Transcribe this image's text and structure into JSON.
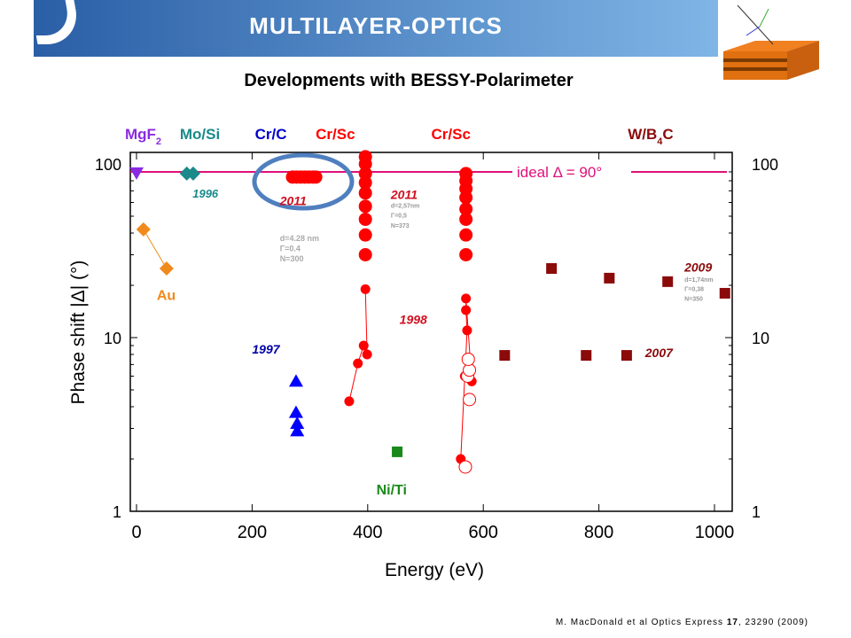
{
  "slide": {
    "title": "MULTILAYER-OPTICS",
    "subtitle": "Developments with BESSY-Polarimeter",
    "citation_pre": "M. MacDonald et al Optics Express ",
    "citation_vol": "17",
    "citation_post": ", 23290 (2009)"
  },
  "chart_data": {
    "type": "scatter",
    "xlabel": "Energy (eV)",
    "ylabel": "Phase shift  |Δ| (°)",
    "xlim": [
      -10,
      1030
    ],
    "ylim": [
      1,
      116
    ],
    "yscale": "log",
    "xticks": [
      0,
      200,
      400,
      600,
      800,
      1000
    ],
    "yticks": [
      1,
      10,
      100
    ],
    "ideal_line": {
      "value": 90,
      "label": "ideal Δ = 90°",
      "color": "#e0107a"
    },
    "series": [
      {
        "name": "MgF2",
        "marker": "triangle-down",
        "color": "#8a2be2",
        "points": [
          [
            0,
            89
          ]
        ]
      },
      {
        "name": "Mo/Si 1996",
        "marker": "diamond",
        "color": "#1a8a8a",
        "points": [
          [
            87,
            88
          ],
          [
            98,
            88
          ]
        ]
      },
      {
        "name": "Au",
        "marker": "diamond",
        "color": "#f08a1c",
        "line": true,
        "points": [
          [
            12,
            42
          ],
          [
            52,
            25
          ]
        ]
      },
      {
        "name": "Cr/C 2011",
        "marker": "circle",
        "color": "#ff0000",
        "points": [
          [
            270,
            84
          ],
          [
            277,
            84
          ],
          [
            284,
            84
          ],
          [
            291,
            84
          ],
          [
            298,
            84
          ],
          [
            305,
            84
          ],
          [
            310,
            84
          ]
        ]
      },
      {
        "name": "Cr/C 1997",
        "marker": "triangle-up",
        "color": "#0000ff",
        "points": [
          [
            276,
            5.6
          ],
          [
            276,
            3.7
          ],
          [
            278,
            3.2
          ],
          [
            278,
            2.9
          ]
        ]
      },
      {
        "name": "Cr/Sc 1998 (400 eV)",
        "marker": "circle",
        "color": "#ff0000",
        "line": true,
        "small": true,
        "points": [
          [
            368,
            4.3
          ],
          [
            383,
            7.1
          ],
          [
            393,
            9
          ],
          [
            399,
            8
          ],
          [
            396,
            19
          ]
        ]
      },
      {
        "name": "Cr/Sc 2011 (400 eV)",
        "marker": "circle",
        "color": "#ff0000",
        "points": [
          [
            396,
            110
          ],
          [
            396,
            100
          ],
          [
            396,
            88
          ],
          [
            396,
            78
          ],
          [
            396,
            68
          ],
          [
            396,
            57
          ],
          [
            396,
            48
          ],
          [
            396,
            39
          ],
          [
            396,
            30
          ]
        ]
      },
      {
        "name": "Cr/Sc 2011 (570 eV)",
        "marker": "circle",
        "color": "#ff0000",
        "points": [
          [
            570,
            88
          ],
          [
            570,
            80
          ],
          [
            570,
            72
          ],
          [
            570,
            64
          ],
          [
            570,
            55
          ],
          [
            570,
            48
          ],
          [
            570,
            39
          ],
          [
            570,
            30
          ]
        ]
      },
      {
        "name": "Cr/Sc 1998 (570 eV)",
        "marker": "circle",
        "color": "#ff0000",
        "line": true,
        "small": true,
        "points": [
          [
            561,
            2.0
          ],
          [
            568,
            6
          ],
          [
            572,
            11
          ],
          [
            570,
            14.4
          ],
          [
            570,
            16.8
          ],
          [
            580,
            5.6
          ]
        ]
      },
      {
        "name": "Cr/Sc 1998 open",
        "marker": "circle-open",
        "color": "#ff0000",
        "points": [
          [
            569,
            1.8
          ],
          [
            576,
            4.4
          ],
          [
            573,
            6
          ],
          [
            576,
            6.5
          ],
          [
            574,
            7.5
          ]
        ]
      },
      {
        "name": "Ni/Ti",
        "marker": "square",
        "color": "#1a8a1a",
        "points": [
          [
            451,
            2.2
          ]
        ]
      },
      {
        "name": "W/B4C 2007",
        "marker": "square",
        "color": "#8b0a0a",
        "points": [
          [
            637,
            7.9
          ],
          [
            778,
            7.9
          ],
          [
            848,
            7.9
          ]
        ]
      },
      {
        "name": "W/B4C 2009",
        "marker": "square",
        "color": "#8b0a0a",
        "points": [
          [
            718,
            25
          ],
          [
            818,
            22
          ],
          [
            919,
            21
          ],
          [
            1018,
            18
          ]
        ]
      }
    ],
    "annotations": [
      {
        "text": "MgF",
        "sub": "2",
        "color": "#8a2be2",
        "x": -20,
        "y": 135,
        "size": 17
      },
      {
        "text": "Mo/Si",
        "color": "#1a8a8a",
        "x": 75,
        "y": 135,
        "size": 17
      },
      {
        "text": "Cr/C",
        "color": "#0000cc",
        "x": 205,
        "y": 135,
        "size": 17
      },
      {
        "text": "Cr/Sc",
        "color": "#ff0000",
        "x": 310,
        "y": 135,
        "size": 17
      },
      {
        "text": "Cr/Sc",
        "color": "#ff0000",
        "x": 510,
        "y": 135,
        "size": 17
      },
      {
        "text": "W/B",
        "sub": "4",
        "tail": "C",
        "color": "#8b0a0a",
        "x": 850,
        "y": 135,
        "size": 17
      },
      {
        "text": "1996",
        "color": "#1a8a8a",
        "x": 97,
        "y": 64,
        "size": 13,
        "italic": true
      },
      {
        "text": "2011",
        "color": "#d01020",
        "x": 248,
        "y": 58,
        "size": 14,
        "italic": true
      },
      {
        "text": "2011",
        "color": "#d01020",
        "x": 440,
        "y": 63,
        "size": 14,
        "italic": true
      },
      {
        "text": "1998",
        "color": "#d01020",
        "x": 455,
        "y": 12,
        "size": 14,
        "italic": true
      },
      {
        "text": "1997",
        "color": "#0000aa",
        "x": 200,
        "y": 8.1,
        "size": 14,
        "italic": true
      },
      {
        "text": "2009",
        "color": "#8b0a0a",
        "x": 948,
        "y": 24,
        "size": 14,
        "italic": true
      },
      {
        "text": "2007",
        "color": "#8b0a0a",
        "x": 880,
        "y": 7.7,
        "size": 14,
        "italic": true
      },
      {
        "text": "Au",
        "color": "#f08a1c",
        "x": 35,
        "y": 16.5,
        "size": 16
      },
      {
        "text": "Ni/Ti",
        "color": "#1a8a1a",
        "x": 415,
        "y": 1.25,
        "size": 16
      },
      {
        "text": "d=4.28 nm",
        "color": "#aaa",
        "x": 248,
        "y": 36,
        "size": 9
      },
      {
        "text": "Γ=0.4",
        "color": "#aaa",
        "x": 248,
        "y": 31.5,
        "size": 9
      },
      {
        "text": "N=300",
        "color": "#aaa",
        "x": 248,
        "y": 27.5,
        "size": 9
      },
      {
        "text": "d=2,57nm",
        "color": "#999",
        "x": 440,
        "y": 56,
        "size": 7
      },
      {
        "text": "Γ=0,5",
        "color": "#999",
        "x": 440,
        "y": 49,
        "size": 7
      },
      {
        "text": "N=373",
        "color": "#999",
        "x": 440,
        "y": 43,
        "size": 7
      },
      {
        "text": "d=1,74nm",
        "color": "#999",
        "x": 948,
        "y": 21,
        "size": 7
      },
      {
        "text": "Γ=0,38",
        "color": "#999",
        "x": 948,
        "y": 18.5,
        "size": 7
      },
      {
        "text": "N=350",
        "color": "#999",
        "x": 948,
        "y": 16.3,
        "size": 7
      }
    ]
  }
}
